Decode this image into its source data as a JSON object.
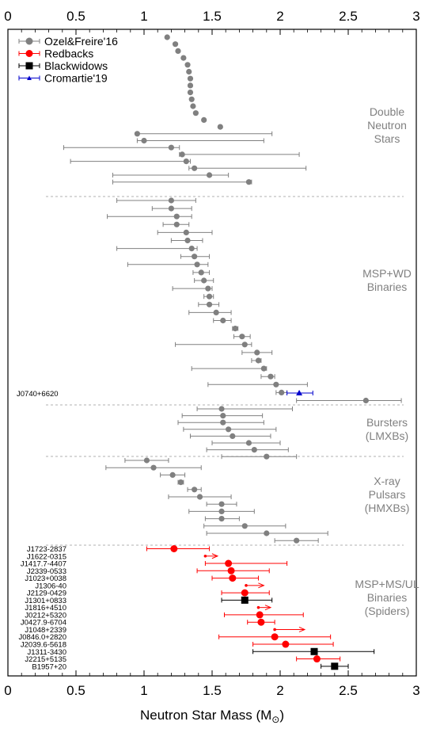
{
  "chart_data": {
    "type": "scatter",
    "title": "",
    "xlabel": "Neutron Star Mass (M",
    "xlabel_sub": "⊙",
    "xlabel_close": ")",
    "xlim": [
      0,
      3
    ],
    "xticks": [
      "0",
      "0.5",
      "1",
      "1.5",
      "2",
      "2.5",
      "3"
    ],
    "xtick_values": [
      0,
      0.5,
      1,
      1.5,
      2,
      2.5,
      3
    ],
    "colors": {
      "ozel": "#808080",
      "redbacks": "#ff0000",
      "blackwidows": "#000000",
      "cromartie": "#0000cc",
      "divider": "#b0b0b0",
      "region_text": "#808080"
    },
    "legend": {
      "placement": "top-left",
      "entries": [
        {
          "label": "Ozel&Freire'16",
          "series": "ozel",
          "marker": "circle"
        },
        {
          "label": "Redbacks",
          "series": "redbacks",
          "marker": "circle"
        },
        {
          "label": "Blackwidows",
          "series": "blackwidows",
          "marker": "square"
        },
        {
          "label": "Cromartie'19",
          "series": "cromartie",
          "marker": "triangle"
        }
      ]
    },
    "regions": [
      {
        "lines": [
          "Double",
          "Neutron",
          "Stars"
        ]
      },
      {
        "lines": [
          "MSP+WD",
          "Binaries"
        ]
      },
      {
        "lines": [
          "Bursters",
          "(LMXBs)"
        ]
      },
      {
        "lines": [
          "X-ray",
          "Pulsars",
          "(HMXBs)"
        ]
      },
      {
        "lines": [
          "MSP+MS/UL",
          "Binaries",
          "(Spiders)"
        ]
      }
    ],
    "dns": [
      {
        "m": 1.17
      },
      {
        "m": 1.23
      },
      {
        "m": 1.25
      },
      {
        "m": 1.29
      },
      {
        "m": 1.32
      },
      {
        "m": 1.33
      },
      {
        "m": 1.34
      },
      {
        "m": 1.34
      },
      {
        "m": 1.34
      },
      {
        "m": 1.35
      },
      {
        "m": 1.36
      },
      {
        "m": 1.38
      },
      {
        "m": 1.44
      },
      {
        "m": 1.56
      },
      {
        "m": 0.95,
        "lo": 0.95,
        "hi": 1.94
      },
      {
        "m": 1.0,
        "lo": 0.95,
        "hi": 1.88
      },
      {
        "m": 1.2,
        "lo": 0.41,
        "hi": 1.26
      },
      {
        "m": 1.28,
        "lo": 1.26,
        "hi": 2.14
      },
      {
        "m": 1.31,
        "lo": 0.46,
        "hi": 1.34
      },
      {
        "m": 1.37,
        "lo": 1.33,
        "hi": 2.19
      },
      {
        "m": 1.48,
        "lo": 0.77,
        "hi": 1.62
      },
      {
        "m": 1.77,
        "lo": 0.77,
        "hi": 1.79
      }
    ],
    "msp_wd": [
      {
        "m": 1.2,
        "lo": 0.8,
        "hi": 1.38
      },
      {
        "m": 1.2,
        "lo": 1.06,
        "hi": 1.35
      },
      {
        "m": 1.24,
        "lo": 0.73,
        "hi": 1.35
      },
      {
        "m": 1.24,
        "lo": 1.14,
        "hi": 1.33
      },
      {
        "m": 1.31,
        "lo": 1.1,
        "hi": 1.5
      },
      {
        "m": 1.32,
        "lo": 1.2,
        "hi": 1.43
      },
      {
        "m": 1.35,
        "lo": 0.8,
        "hi": 1.39
      },
      {
        "m": 1.37,
        "lo": 1.27,
        "hi": 1.48
      },
      {
        "m": 1.39,
        "lo": 0.88,
        "hi": 1.47
      },
      {
        "m": 1.42,
        "lo": 1.36,
        "hi": 1.48
      },
      {
        "m": 1.44,
        "lo": 1.37,
        "hi": 1.51
      },
      {
        "m": 1.47,
        "lo": 1.21,
        "hi": 1.5
      },
      {
        "m": 1.48,
        "lo": 1.44,
        "hi": 1.51
      },
      {
        "m": 1.48,
        "lo": 1.4,
        "hi": 1.55
      },
      {
        "m": 1.53,
        "lo": 1.33,
        "hi": 1.64
      },
      {
        "m": 1.58,
        "lo": 1.51,
        "hi": 1.64
      },
      {
        "m": 1.67,
        "lo": 1.65,
        "hi": 1.69
      },
      {
        "m": 1.72,
        "lo": 1.66,
        "hi": 1.78
      },
      {
        "m": 1.74,
        "lo": 1.23,
        "hi": 1.79
      },
      {
        "m": 1.83,
        "lo": 1.72,
        "hi": 1.94
      },
      {
        "m": 1.84,
        "lo": 1.79,
        "hi": 1.86
      },
      {
        "m": 1.88,
        "lo": 1.35,
        "hi": 1.9
      },
      {
        "m": 1.93,
        "lo": 1.86,
        "hi": 1.96
      },
      {
        "m": 1.97,
        "lo": 1.47,
        "hi": 2.2
      },
      {
        "m": 2.01,
        "lo": 1.97,
        "hi": 2.05
      },
      {
        "m": 2.63,
        "lo": 2.12,
        "hi": 2.89
      }
    ],
    "cromartie": [
      {
        "label": "J0740+6620",
        "m": 2.14,
        "lo": 2.05,
        "hi": 2.24
      }
    ],
    "bursters": [
      {
        "m": 1.57,
        "lo": 1.39,
        "hi": 2.09
      },
      {
        "m": 1.58,
        "lo": 1.28,
        "hi": 1.87
      },
      {
        "m": 1.58,
        "lo": 1.25,
        "hi": 1.88
      },
      {
        "m": 1.62,
        "lo": 1.29,
        "hi": 1.97
      },
      {
        "m": 1.65,
        "lo": 1.34,
        "hi": 1.93
      },
      {
        "m": 1.77,
        "lo": 1.5,
        "hi": 2.0
      },
      {
        "m": 1.81,
        "lo": 1.46,
        "hi": 2.06
      },
      {
        "m": 1.9,
        "lo": 1.57,
        "hi": 2.12
      }
    ],
    "hmxb": [
      {
        "m": 1.02,
        "lo": 0.86,
        "hi": 1.18
      },
      {
        "m": 1.07,
        "lo": 0.72,
        "hi": 1.42
      },
      {
        "m": 1.21,
        "lo": 1.12,
        "hi": 1.3
      },
      {
        "m": 1.27,
        "lo": 1.25,
        "hi": 1.29
      },
      {
        "m": 1.37,
        "lo": 1.32,
        "hi": 1.42
      },
      {
        "m": 1.41,
        "lo": 1.18,
        "hi": 1.64
      },
      {
        "m": 1.57,
        "lo": 1.46,
        "hi": 1.68
      },
      {
        "m": 1.57,
        "lo": 1.33,
        "hi": 1.81
      },
      {
        "m": 1.57,
        "lo": 1.45,
        "hi": 1.7
      },
      {
        "m": 1.74,
        "lo": 1.44,
        "hi": 2.04
      },
      {
        "m": 1.9,
        "lo": 1.46,
        "hi": 2.35
      },
      {
        "m": 2.12,
        "lo": 1.96,
        "hi": 2.28
      }
    ],
    "spiders": [
      {
        "label": "J1723-2837",
        "type": "rb",
        "m": 1.22,
        "lo": 1.02,
        "hi": 1.48
      },
      {
        "label": "J1622-0315",
        "type": "rb",
        "m": 1.45,
        "arrow_to": 1.54,
        "small": true
      },
      {
        "label": "J1417.7-4407",
        "type": "rb",
        "m": 1.62,
        "lo": 1.45,
        "hi": 2.05
      },
      {
        "label": "J2339-0533",
        "type": "rb",
        "m": 1.64,
        "lo": 1.39,
        "hi": 1.92
      },
      {
        "label": "J1023+0038",
        "type": "rb",
        "m": 1.65,
        "lo": 1.5,
        "hi": 1.84
      },
      {
        "label": "J1306-40",
        "type": "rb",
        "m": 1.75,
        "arrow_to": 1.88,
        "small": true
      },
      {
        "label": "J2129-0429",
        "type": "rb",
        "m": 1.74,
        "lo": 1.57,
        "hi": 1.92
      },
      {
        "label": "J1301+0833",
        "type": "bw",
        "m": 1.74,
        "lo": 1.57,
        "hi": 1.94
      },
      {
        "label": "J1816+4510",
        "type": "rb",
        "m": 1.84,
        "arrow_to": 1.93,
        "small": true
      },
      {
        "label": "J0212+5320",
        "type": "rb",
        "m": 1.85,
        "lo": 1.59,
        "hi": 2.17
      },
      {
        "label": "J0427.9-6704",
        "type": "rb",
        "m": 1.86,
        "lo": 1.76,
        "hi": 1.96
      },
      {
        "label": "J1048+2339",
        "type": "rb",
        "m": 1.96,
        "arrow_to": 2.18,
        "small": true
      },
      {
        "label": "J0846.0+2820",
        "type": "rb",
        "m": 1.96,
        "lo": 1.55,
        "hi": 2.37
      },
      {
        "label": "J2039.6-5618",
        "type": "rb",
        "m": 2.04,
        "lo": 1.8,
        "hi": 2.39
      },
      {
        "label": "J1311-3430",
        "type": "bw",
        "m": 2.25,
        "lo": 1.8,
        "hi": 2.69
      },
      {
        "label": "J2215+5135",
        "type": "rb",
        "m": 2.27,
        "lo": 2.12,
        "hi": 2.44
      },
      {
        "label": "B1957+20",
        "type": "bw",
        "m": 2.4,
        "lo": 2.3,
        "hi": 2.5
      }
    ]
  }
}
